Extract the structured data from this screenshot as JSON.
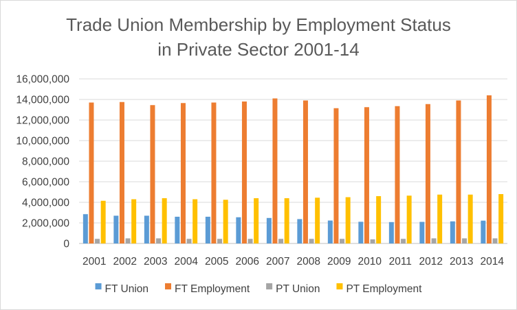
{
  "chart_data": {
    "type": "bar",
    "title": "Trade Union Membership by Employment Status in Private Sector 2001-14",
    "title_lines": [
      "Trade Union Membership by Employment Status",
      "in Private Sector 2001-14"
    ],
    "xlabel": "",
    "ylabel": "",
    "ylim": [
      0,
      16000000
    ],
    "yticks": [
      0,
      2000000,
      4000000,
      6000000,
      8000000,
      10000000,
      12000000,
      14000000,
      16000000
    ],
    "ytick_labels": [
      "0",
      "2,000,000",
      "4,000,000",
      "6,000,000",
      "8,000,000",
      "10,000,000",
      "12,000,000",
      "14,000,000",
      "16,000,000"
    ],
    "grid": true,
    "legend_position": "bottom",
    "categories": [
      "2001",
      "2002",
      "2003",
      "2004",
      "2005",
      "2006",
      "2007",
      "2008",
      "2009",
      "2010",
      "2011",
      "2012",
      "2013",
      "2014"
    ],
    "series": [
      {
        "name": "FT Union",
        "color": "#5b9bd5",
        "values": [
          2850000,
          2700000,
          2700000,
          2600000,
          2600000,
          2550000,
          2480000,
          2370000,
          2230000,
          2110000,
          2080000,
          2100000,
          2150000,
          2220000
        ]
      },
      {
        "name": "FT Employment",
        "color": "#ed7d31",
        "values": [
          13700000,
          13750000,
          13450000,
          13650000,
          13700000,
          13800000,
          14100000,
          13900000,
          13150000,
          13250000,
          13350000,
          13550000,
          13900000,
          14400000
        ]
      },
      {
        "name": "PT Union",
        "color": "#a5a5a5",
        "values": [
          450000,
          500000,
          500000,
          450000,
          450000,
          450000,
          450000,
          450000,
          450000,
          400000,
          450000,
          500000,
          500000,
          500000
        ]
      },
      {
        "name": "PT Employment",
        "color": "#ffc000",
        "values": [
          4150000,
          4300000,
          4400000,
          4300000,
          4250000,
          4400000,
          4400000,
          4450000,
          4500000,
          4600000,
          4650000,
          4750000,
          4750000,
          4800000
        ]
      }
    ]
  }
}
